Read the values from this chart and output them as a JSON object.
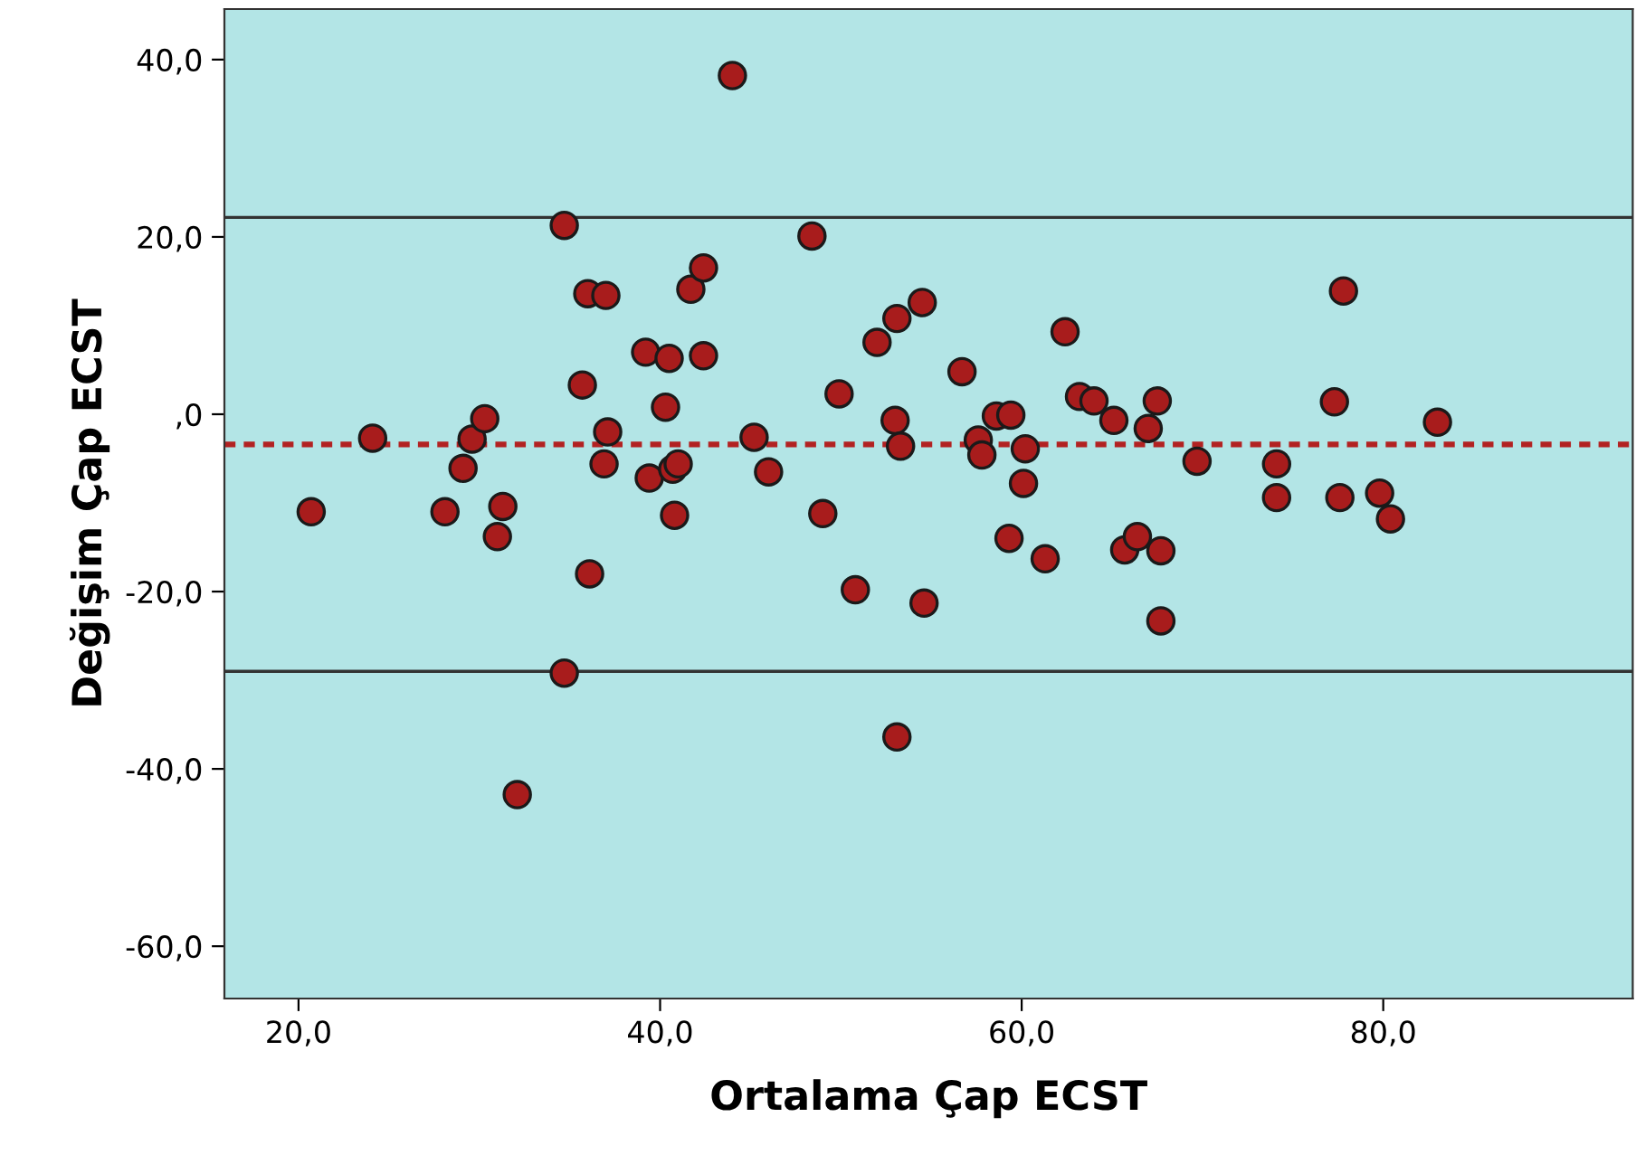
{
  "chart_data": {
    "type": "scatter",
    "xlabel": "Ortalama Çap ECST",
    "ylabel": "Değişim Çap ECST",
    "xlim": [
      15.9,
      93.8
    ],
    "ylim": [
      -65.9,
      45.7
    ],
    "xticks": [
      {
        "value": 20,
        "label": "20,0"
      },
      {
        "value": 40,
        "label": "40,0"
      },
      {
        "value": 60,
        "label": "60,0"
      },
      {
        "value": 80,
        "label": "80,0"
      }
    ],
    "yticks": [
      {
        "value": -60,
        "label": "-60,0"
      },
      {
        "value": -40,
        "label": "-40,0"
      },
      {
        "value": -20,
        "label": "-20,0"
      },
      {
        "value": 0,
        "label": ",0"
      },
      {
        "value": 20,
        "label": "20,0"
      },
      {
        "value": 40,
        "label": "40,0"
      }
    ],
    "grid": false,
    "legend": false,
    "marker": "circle",
    "series": [
      {
        "color": "#a81c1c",
        "x": [
          20.7,
          24.1,
          28.1,
          29.1,
          29.6,
          30.3,
          31.3,
          31.0,
          32.1,
          34.7,
          34.7,
          35.7,
          36.0,
          37.0,
          37.1,
          36.9,
          36.1,
          39.2,
          40.5,
          40.3,
          39.4,
          40.7,
          41.0,
          40.8,
          41.7,
          42.4,
          42.4,
          44.0,
          48.4,
          45.2,
          46.0,
          49.9,
          49.0,
          50.8,
          52.0,
          53.1,
          54.5,
          53.0,
          53.3,
          54.6,
          53.1,
          56.7,
          57.6,
          57.8,
          58.6,
          59.4,
          60.2,
          60.1,
          59.3,
          61.3,
          62.4,
          63.2,
          64.0,
          65.1,
          67.0,
          67.5,
          65.7,
          66.4,
          67.7,
          67.7,
          77.8,
          77.3,
          83.0,
          69.7,
          74.1,
          74.1,
          77.6,
          79.8,
          80.4
        ],
        "values": [
          -11.0,
          -2.7,
          -11.0,
          -6.1,
          -2.8,
          -0.5,
          -10.4,
          -13.8,
          -42.9,
          21.3,
          -29.2,
          3.3,
          13.6,
          13.4,
          -2.0,
          -5.6,
          -18.0,
          7.0,
          6.3,
          0.8,
          -7.2,
          -6.2,
          -5.6,
          -11.4,
          14.1,
          16.5,
          6.6,
          38.2,
          20.1,
          -2.6,
          -6.5,
          2.3,
          -11.2,
          -19.8,
          8.1,
          10.8,
          12.6,
          -0.7,
          -3.6,
          -21.3,
          -36.4,
          4.8,
          -2.9,
          -4.6,
          -0.2,
          -0.1,
          -3.9,
          -7.8,
          -14.0,
          -16.3,
          9.3,
          2.0,
          1.5,
          -0.7,
          -1.6,
          1.5,
          -15.3,
          -13.8,
          -15.4,
          -23.3,
          13.9,
          1.4,
          -0.9,
          -5.3,
          -5.6,
          -9.4,
          -9.4,
          -8.9,
          -11.8
        ]
      }
    ],
    "ref_lines": [
      {
        "axis": "y",
        "value": 22.2,
        "color": "#333333",
        "line_style": "solid"
      },
      {
        "axis": "y",
        "value": -3.4,
        "color": "#b22222",
        "line_style": "dotted"
      },
      {
        "axis": "y",
        "value": -29.0,
        "color": "#333333",
        "line_style": "solid"
      }
    ]
  }
}
